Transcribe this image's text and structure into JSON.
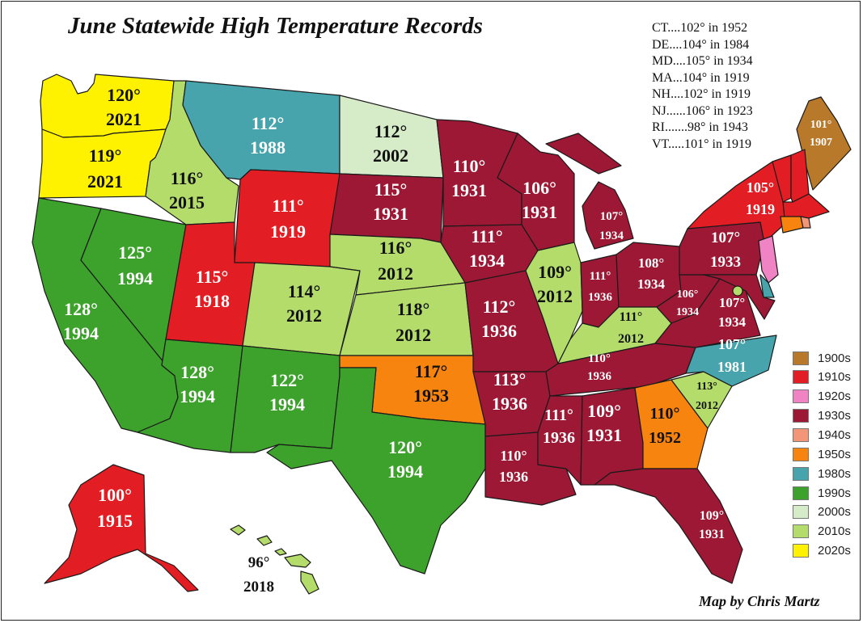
{
  "title": "June Statewide High Temperature Records",
  "credit": "Map by Chris Martz",
  "small_states": [
    "CT....102° in 1952",
    "DE....104° in 1984",
    "MD....105° in 1934",
    "MA...104° in  1919",
    "NH....102° in 1919",
    "NJ......106° in 1923",
    "RI.......98° in 1943",
    "VT.....101° in 1919"
  ],
  "legend": [
    {
      "label": "1900s",
      "color": "#b8792a"
    },
    {
      "label": "1910s",
      "color": "#e21d23"
    },
    {
      "label": "1920s",
      "color": "#ef83c4"
    },
    {
      "label": "1930s",
      "color": "#9c1834"
    },
    {
      "label": "1940s",
      "color": "#f39577"
    },
    {
      "label": "1950s",
      "color": "#f7840f"
    },
    {
      "label": "1980s",
      "color": "#47a4ad"
    },
    {
      "label": "1990s",
      "color": "#3da22b"
    },
    {
      "label": "2000s",
      "color": "#d6ecc8"
    },
    {
      "label": "2010s",
      "color": "#b3dc6b"
    },
    {
      "label": "2020s",
      "color": "#fff200"
    }
  ],
  "states": [
    {
      "id": "WA",
      "temp": "120°",
      "year": "2021",
      "decade": "2020s",
      "text_color": "#111111"
    },
    {
      "id": "OR",
      "temp": "119°",
      "year": "2021",
      "decade": "2020s",
      "text_color": "#111111"
    },
    {
      "id": "CA",
      "temp": "128°",
      "year": "1994",
      "decade": "1990s",
      "text_color": "#ffffff"
    },
    {
      "id": "NV",
      "temp": "125°",
      "year": "1994",
      "decade": "1990s",
      "text_color": "#ffffff"
    },
    {
      "id": "ID",
      "temp": "116°",
      "year": "2015",
      "decade": "2010s",
      "text_color": "#111111"
    },
    {
      "id": "MT",
      "temp": "112°",
      "year": "1988",
      "decade": "1980s",
      "text_color": "#ffffff"
    },
    {
      "id": "WY",
      "temp": "111°",
      "year": "1919",
      "decade": "1910s",
      "text_color": "#ffffff"
    },
    {
      "id": "UT",
      "temp": "115°",
      "year": "1918",
      "decade": "1910s",
      "text_color": "#ffffff"
    },
    {
      "id": "AZ",
      "temp": "128°",
      "year": "1994",
      "decade": "1990s",
      "text_color": "#ffffff"
    },
    {
      "id": "CO",
      "temp": "114°",
      "year": "2012",
      "decade": "2010s",
      "text_color": "#111111"
    },
    {
      "id": "NM",
      "temp": "122°",
      "year": "1994",
      "decade": "1990s",
      "text_color": "#ffffff"
    },
    {
      "id": "ND",
      "temp": "112°",
      "year": "2002",
      "decade": "2000s",
      "text_color": "#111111"
    },
    {
      "id": "SD",
      "temp": "115°",
      "year": "1931",
      "decade": "1930s",
      "text_color": "#ffffff"
    },
    {
      "id": "NE",
      "temp": "116°",
      "year": "2012",
      "decade": "2010s",
      "text_color": "#111111"
    },
    {
      "id": "KS",
      "temp": "118°",
      "year": "2012",
      "decade": "2010s",
      "text_color": "#111111"
    },
    {
      "id": "OK",
      "temp": "117°",
      "year": "1953",
      "decade": "1950s",
      "text_color": "#111111"
    },
    {
      "id": "TX",
      "temp": "120°",
      "year": "1994",
      "decade": "1990s",
      "text_color": "#ffffff"
    },
    {
      "id": "MN",
      "temp": "110°",
      "year": "1931",
      "decade": "1930s",
      "text_color": "#ffffff"
    },
    {
      "id": "IA",
      "temp": "111°",
      "year": "1934",
      "decade": "1930s",
      "text_color": "#ffffff"
    },
    {
      "id": "MO",
      "temp": "112°",
      "year": "1936",
      "decade": "1930s",
      "text_color": "#ffffff"
    },
    {
      "id": "AR",
      "temp": "113°",
      "year": "1936",
      "decade": "1930s",
      "text_color": "#ffffff"
    },
    {
      "id": "LA",
      "temp": "110°",
      "year": "1936",
      "decade": "1930s",
      "text_color": "#ffffff"
    },
    {
      "id": "WI",
      "temp": "106°",
      "year": "1931",
      "decade": "1930s",
      "text_color": "#ffffff"
    },
    {
      "id": "IL",
      "temp": "109°",
      "year": "2012",
      "decade": "2010s",
      "text_color": "#111111"
    },
    {
      "id": "MI",
      "temp": "107°",
      "year": "1934",
      "decade": "1930s",
      "text_color": "#ffffff"
    },
    {
      "id": "IN",
      "temp": "111°",
      "year": "1936",
      "decade": "1930s",
      "text_color": "#ffffff"
    },
    {
      "id": "OH",
      "temp": "108°",
      "year": "1934",
      "decade": "1930s",
      "text_color": "#ffffff"
    },
    {
      "id": "KY",
      "temp": "111°",
      "year": "2012",
      "decade": "2010s",
      "text_color": "#111111"
    },
    {
      "id": "TN",
      "temp": "110°",
      "year": "1936",
      "decade": "1930s",
      "text_color": "#ffffff"
    },
    {
      "id": "MS",
      "temp": "111°",
      "year": "1936",
      "decade": "1930s",
      "text_color": "#ffffff"
    },
    {
      "id": "AL",
      "temp": "109°",
      "year": "1931",
      "decade": "1930s",
      "text_color": "#ffffff"
    },
    {
      "id": "GA",
      "temp": "110°",
      "year": "1952",
      "decade": "1950s",
      "text_color": "#111111"
    },
    {
      "id": "FL",
      "temp": "109°",
      "year": "1931",
      "decade": "1930s",
      "text_color": "#ffffff"
    },
    {
      "id": "SC",
      "temp": "113°",
      "year": "2012",
      "decade": "2010s",
      "text_color": "#111111"
    },
    {
      "id": "NC",
      "temp": "107°",
      "year": "1981",
      "decade": "1980s",
      "text_color": "#ffffff"
    },
    {
      "id": "VA",
      "temp": "107°",
      "year": "1934",
      "decade": "1930s",
      "text_color": "#ffffff"
    },
    {
      "id": "WV",
      "temp": "106°",
      "year": "1934",
      "decade": "1930s",
      "text_color": "#ffffff"
    },
    {
      "id": "PA",
      "temp": "107°",
      "year": "1933",
      "decade": "1930s",
      "text_color": "#ffffff"
    },
    {
      "id": "NY",
      "temp": "105°",
      "year": "1919",
      "decade": "1910s",
      "text_color": "#ffffff"
    },
    {
      "id": "ME",
      "temp": "101°",
      "year": "1907",
      "decade": "1900s",
      "text_color": "#ffffff"
    },
    {
      "id": "AK",
      "temp": "100°",
      "year": "1915",
      "decade": "1910s",
      "text_color": "#ffffff"
    },
    {
      "id": "HI",
      "temp": "96°",
      "year": "2018",
      "decade": "2010s",
      "text_color": "#111111"
    },
    {
      "id": "VT",
      "decade": "1910s"
    },
    {
      "id": "NH",
      "decade": "1910s"
    },
    {
      "id": "MA",
      "decade": "1910s"
    },
    {
      "id": "CT",
      "decade": "1950s"
    },
    {
      "id": "RI",
      "decade": "1940s"
    },
    {
      "id": "NJ",
      "decade": "1920s"
    },
    {
      "id": "DE",
      "decade": "1980s"
    },
    {
      "id": "MD",
      "decade": "1930s"
    },
    {
      "id": "DC",
      "decade": "2010s"
    }
  ]
}
